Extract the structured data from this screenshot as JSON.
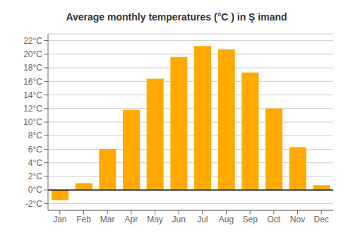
{
  "chart_data": {
    "type": "bar",
    "title": "Average monthly temperatures (°C ) in Ş imand",
    "categories": [
      "Jan",
      "Feb",
      "Mar",
      "Apr",
      "May",
      "Jun",
      "Jul",
      "Aug",
      "Sep",
      "Oct",
      "Nov",
      "Dec"
    ],
    "values": [
      -1.5,
      1.0,
      6.0,
      11.8,
      16.4,
      19.6,
      21.2,
      20.7,
      17.3,
      12.0,
      6.3,
      0.7
    ],
    "color": "#FFAA00",
    "ylim": [
      -3,
      23
    ],
    "yticks": [
      {
        "value": -2,
        "label": "-2°C"
      },
      {
        "value": 0,
        "label": "0°C"
      },
      {
        "value": 2,
        "label": "2°C"
      },
      {
        "value": 4,
        "label": "4°C"
      },
      {
        "value": 6,
        "label": "6°C"
      },
      {
        "value": 8,
        "label": "8°C"
      },
      {
        "value": 10,
        "label": "10°C"
      },
      {
        "value": 12,
        "label": "12°C"
      },
      {
        "value": 14,
        "label": "14°C"
      },
      {
        "value": 16,
        "label": "16°C"
      },
      {
        "value": 18,
        "label": "18°C"
      },
      {
        "value": 20,
        "label": "20°C"
      },
      {
        "value": 22,
        "label": "22°C"
      }
    ],
    "grid": true
  }
}
